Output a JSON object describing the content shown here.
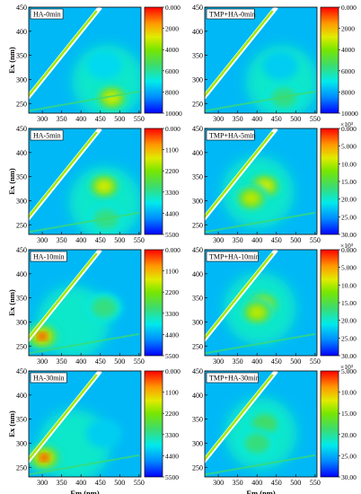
{
  "figure": {
    "x_label": "Em (nm)",
    "y_label": "Ex (nm)"
  },
  "chart_data": [
    {
      "type": "heatmap",
      "title": "HA-0min",
      "xlabel": "",
      "ylabel": "Ex (nm)",
      "x_ticks": [
        300,
        350,
        400,
        450,
        500,
        550
      ],
      "y_ticks": [
        250,
        300,
        350,
        400,
        450
      ],
      "xlim": [
        265,
        555
      ],
      "ylim": [
        230,
        450
      ],
      "colorbar": {
        "ticks": [
          "0.000",
          "2000",
          "4000",
          "6000",
          "8000",
          "10000"
        ],
        "min": 0,
        "max": 10000,
        "multiplier": ""
      },
      "peaks": [
        {
          "em": 480,
          "ex": 262,
          "value": 9000
        },
        {
          "em": 460,
          "ex": 330,
          "value": 4800
        }
      ]
    },
    {
      "type": "heatmap",
      "title": "TMP+HA-0min",
      "xlabel": "",
      "ylabel": "",
      "x_ticks": [
        300,
        350,
        400,
        450,
        500,
        550
      ],
      "y_ticks": [
        250,
        300,
        350,
        400,
        450
      ],
      "xlim": [
        265,
        555
      ],
      "ylim": [
        230,
        450
      ],
      "colorbar": {
        "ticks": [
          "0.000",
          "2000",
          "4000",
          "6000",
          "8000",
          "10000"
        ],
        "min": 0,
        "max": 10000,
        "multiplier": ""
      },
      "peaks": [
        {
          "em": 470,
          "ex": 262,
          "value": 6500
        },
        {
          "em": 460,
          "ex": 328,
          "value": 3500
        }
      ]
    },
    {
      "type": "heatmap",
      "title": "HA-5min",
      "xlabel": "",
      "ylabel": "Ex (nm)",
      "x_ticks": [
        300,
        350,
        400,
        450,
        500,
        550
      ],
      "y_ticks": [
        250,
        300,
        350,
        400,
        450
      ],
      "xlim": [
        265,
        555
      ],
      "ylim": [
        230,
        450
      ],
      "colorbar": {
        "ticks": [
          "0.000",
          "1100",
          "2200",
          "3300",
          "4400",
          "5500"
        ],
        "min": 0,
        "max": 5500,
        "multiplier": ""
      },
      "peaks": [
        {
          "em": 460,
          "ex": 330,
          "value": 5000
        },
        {
          "em": 465,
          "ex": 262,
          "value": 3500
        }
      ]
    },
    {
      "type": "heatmap",
      "title": "TMP+HA-5min",
      "xlabel": "",
      "ylabel": "",
      "x_ticks": [
        300,
        350,
        400,
        450,
        500,
        550
      ],
      "y_ticks": [
        250,
        300,
        350,
        400,
        450
      ],
      "xlim": [
        265,
        555
      ],
      "ylim": [
        230,
        450
      ],
      "colorbar": {
        "ticks": [
          "0.000",
          "5.000",
          "10.00",
          "15.00",
          "20.00",
          "25.00",
          "30.00"
        ],
        "min": 0,
        "max": 30,
        "multiplier": "×10³"
      },
      "peaks": [
        {
          "em": 420,
          "ex": 330,
          "value": 28
        },
        {
          "em": 385,
          "ex": 305,
          "value": 26
        }
      ]
    },
    {
      "type": "heatmap",
      "title": "HA-10min",
      "xlabel": "",
      "ylabel": "Ex (nm)",
      "x_ticks": [
        300,
        350,
        400,
        450,
        500,
        550
      ],
      "y_ticks": [
        250,
        300,
        350,
        400,
        450
      ],
      "xlim": [
        265,
        555
      ],
      "ylim": [
        230,
        450
      ],
      "colorbar": {
        "ticks": [
          "0.000",
          "1100",
          "2200",
          "3300",
          "4400",
          "5500"
        ],
        "min": 0,
        "max": 5500,
        "multiplier": ""
      },
      "peaks": [
        {
          "em": 300,
          "ex": 270,
          "value": 5500
        },
        {
          "em": 460,
          "ex": 330,
          "value": 3600
        }
      ]
    },
    {
      "type": "heatmap",
      "title": "TMP+HA-10min",
      "xlabel": "",
      "ylabel": "",
      "x_ticks": [
        300,
        350,
        400,
        450,
        500,
        550
      ],
      "y_ticks": [
        250,
        300,
        350,
        400,
        450
      ],
      "xlim": [
        265,
        555
      ],
      "ylim": [
        230,
        450
      ],
      "colorbar": {
        "ticks": [
          "0.000",
          "5.000",
          "10.00",
          "15.00",
          "20.00",
          "25.00",
          "30.00"
        ],
        "min": 0,
        "max": 30,
        "multiplier": "×10³"
      },
      "peaks": [
        {
          "em": 415,
          "ex": 335,
          "value": 29
        },
        {
          "em": 400,
          "ex": 320,
          "value": 26
        }
      ]
    },
    {
      "type": "heatmap",
      "title": "HA-30min",
      "xlabel": "Em (nm)",
      "ylabel": "Ex (nm)",
      "x_ticks": [
        300,
        350,
        400,
        450,
        500,
        550
      ],
      "y_ticks": [
        250,
        300,
        350,
        400,
        450
      ],
      "xlim": [
        265,
        555
      ],
      "ylim": [
        230,
        450
      ],
      "colorbar": {
        "ticks": [
          "0.000",
          "1100",
          "2200",
          "3300",
          "4400",
          "5500"
        ],
        "min": 0,
        "max": 5500,
        "multiplier": ""
      },
      "peaks": [
        {
          "em": 305,
          "ex": 270,
          "value": 5500
        },
        {
          "em": 460,
          "ex": 320,
          "value": 2000
        }
      ]
    },
    {
      "type": "heatmap",
      "title": "TMP+HA-30min",
      "xlabel": "Em (nm)",
      "ylabel": "",
      "x_ticks": [
        300,
        350,
        400,
        450,
        500,
        550
      ],
      "y_ticks": [
        250,
        300,
        350,
        400,
        450
      ],
      "xlim": [
        265,
        555
      ],
      "ylim": [
        230,
        450
      ],
      "colorbar": {
        "ticks": [
          "5.000",
          "10.00",
          "15.00",
          "20.00",
          "25.00",
          "30.00"
        ],
        "min": 0,
        "max": 30,
        "multiplier": "×10³"
      },
      "peaks": [
        {
          "em": 420,
          "ex": 340,
          "value": 22
        },
        {
          "em": 400,
          "ex": 300,
          "value": 20
        }
      ]
    }
  ]
}
